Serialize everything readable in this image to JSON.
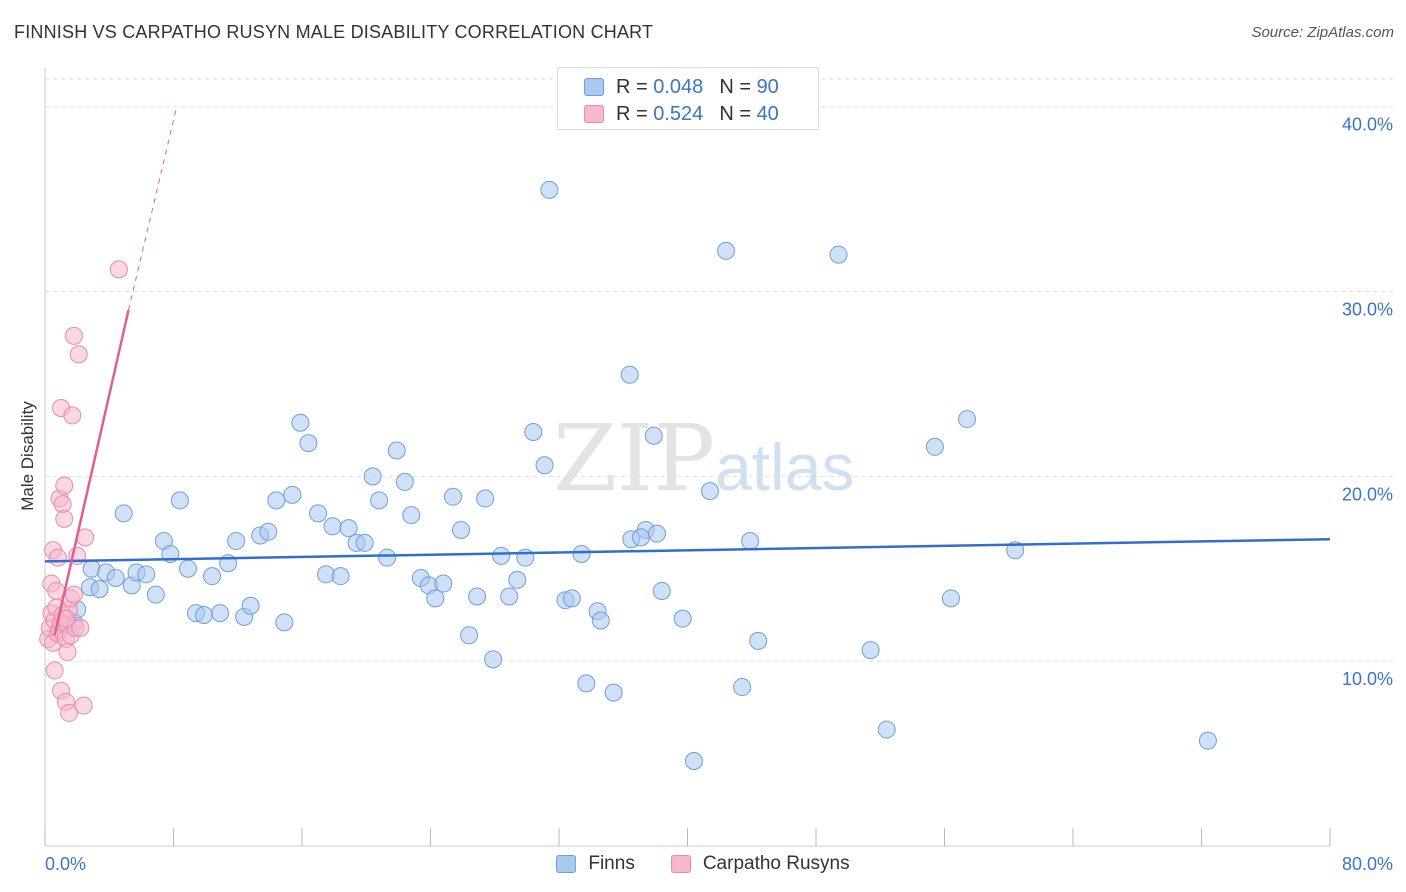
{
  "title": "FINNISH VS CARPATHO RUSYN MALE DISABILITY CORRELATION CHART",
  "source": "Source: ZipAtlas.com",
  "watermark": {
    "part1": "ZIP",
    "part2": "atlas"
  },
  "legend": {
    "rows": [
      {
        "r_label": "R =",
        "r_value": "0.048",
        "n_label": "N =",
        "n_value": "90"
      },
      {
        "r_label": "R =",
        "r_value": "0.524",
        "n_label": "N =",
        "n_value": "40"
      }
    ]
  },
  "colors": {
    "finns_fill": "#aac8f0",
    "finns_stroke": "#6f9fd8",
    "finns_line": "#2f6fce",
    "rusyn_fill": "#f6b8cc",
    "rusyn_stroke": "#e88aaa",
    "rusyn_line": "#e0608e",
    "axis_label": "#3b74c9",
    "grid": "#dddddd"
  },
  "chart_data": {
    "type": "scatter",
    "title": "FINNISH VS CARPATHO RUSYN MALE DISABILITY CORRELATION CHART",
    "xlabel": "",
    "ylabel": "Male Disability",
    "xlim": [
      0,
      80
    ],
    "ylim": [
      0,
      41.5
    ],
    "x_tick_labels": [
      "0.0%",
      "80.0%"
    ],
    "y_ticks": [
      10,
      20,
      30,
      40
    ],
    "y_tick_labels": [
      "10.0%",
      "20.0%",
      "30.0%",
      "40.0%"
    ],
    "grid": true,
    "legend_position": "top-center",
    "series": [
      {
        "name": "Finns",
        "R": 0.048,
        "N": 90,
        "trend": {
          "x0": 0,
          "y0": 15.4,
          "x1": 80,
          "y1": 16.6
        },
        "points": [
          [
            1.8,
            12.1
          ],
          [
            2.0,
            12.8
          ],
          [
            2.8,
            14.0
          ],
          [
            2.9,
            15.0
          ],
          [
            3.4,
            13.9
          ],
          [
            3.8,
            14.8
          ],
          [
            4.4,
            14.5
          ],
          [
            4.9,
            18.0
          ],
          [
            5.4,
            14.1
          ],
          [
            5.7,
            14.8
          ],
          [
            6.3,
            14.7
          ],
          [
            6.9,
            13.6
          ],
          [
            7.4,
            16.5
          ],
          [
            7.8,
            15.8
          ],
          [
            8.4,
            18.7
          ],
          [
            8.9,
            15.0
          ],
          [
            9.4,
            12.6
          ],
          [
            9.9,
            12.5
          ],
          [
            10.4,
            14.6
          ],
          [
            10.9,
            12.6
          ],
          [
            11.4,
            15.3
          ],
          [
            11.9,
            16.5
          ],
          [
            12.4,
            12.4
          ],
          [
            12.8,
            13.0
          ],
          [
            13.4,
            16.8
          ],
          [
            13.9,
            17.0
          ],
          [
            14.4,
            18.7
          ],
          [
            14.9,
            12.1
          ],
          [
            15.4,
            19.0
          ],
          [
            15.9,
            22.9
          ],
          [
            16.4,
            21.8
          ],
          [
            17.0,
            18.0
          ],
          [
            17.5,
            14.7
          ],
          [
            17.9,
            17.3
          ],
          [
            18.4,
            14.6
          ],
          [
            18.9,
            17.2
          ],
          [
            19.4,
            16.4
          ],
          [
            19.9,
            16.4
          ],
          [
            20.4,
            20.0
          ],
          [
            20.8,
            18.7
          ],
          [
            21.3,
            15.6
          ],
          [
            21.9,
            21.4
          ],
          [
            22.4,
            19.7
          ],
          [
            22.8,
            17.9
          ],
          [
            23.4,
            14.5
          ],
          [
            23.9,
            14.1
          ],
          [
            24.3,
            13.4
          ],
          [
            24.8,
            14.2
          ],
          [
            25.4,
            18.9
          ],
          [
            25.9,
            17.1
          ],
          [
            26.4,
            11.4
          ],
          [
            26.9,
            13.5
          ],
          [
            27.4,
            18.8
          ],
          [
            27.9,
            10.1
          ],
          [
            28.4,
            15.7
          ],
          [
            28.9,
            13.5
          ],
          [
            29.4,
            14.4
          ],
          [
            29.9,
            15.6
          ],
          [
            30.4,
            22.4
          ],
          [
            31.1,
            20.6
          ],
          [
            31.4,
            35.5
          ],
          [
            32.4,
            13.3
          ],
          [
            32.8,
            13.4
          ],
          [
            33.4,
            15.8
          ],
          [
            33.7,
            8.8
          ],
          [
            34.4,
            12.7
          ],
          [
            34.6,
            12.2
          ],
          [
            35.4,
            8.3
          ],
          [
            36.4,
            25.5
          ],
          [
            36.5,
            16.6
          ],
          [
            37.4,
            17.1
          ],
          [
            37.1,
            16.7
          ],
          [
            37.9,
            22.2
          ],
          [
            38.4,
            13.8
          ],
          [
            39.7,
            12.3
          ],
          [
            40.4,
            4.6
          ],
          [
            41.4,
            19.2
          ],
          [
            42.4,
            32.2
          ],
          [
            43.4,
            8.6
          ],
          [
            44.4,
            11.1
          ],
          [
            49.4,
            32.0
          ],
          [
            51.4,
            10.6
          ],
          [
            52.4,
            6.3
          ],
          [
            55.4,
            21.6
          ],
          [
            56.4,
            13.4
          ],
          [
            57.4,
            23.1
          ],
          [
            60.4,
            16.0
          ],
          [
            72.4,
            5.7
          ],
          [
            43.9,
            16.5
          ],
          [
            38.1,
            16.9
          ]
        ]
      },
      {
        "name": "Carpatho Rusyns",
        "R": 0.524,
        "N": 40,
        "trend": {
          "x0": 0.6,
          "y0": 11.4,
          "x1": 5.2,
          "y1": 29.0
        },
        "trend_dashed": {
          "x0": 5.2,
          "y0": 29.0,
          "x1": 8.2,
          "y1": 40.0
        },
        "points": [
          [
            0.2,
            11.2
          ],
          [
            0.3,
            11.8
          ],
          [
            0.4,
            12.6
          ],
          [
            0.4,
            14.2
          ],
          [
            0.5,
            16.0
          ],
          [
            0.5,
            11.0
          ],
          [
            0.6,
            9.5
          ],
          [
            0.6,
            12.2
          ],
          [
            0.7,
            13.8
          ],
          [
            0.7,
            12.9
          ],
          [
            0.8,
            11.5
          ],
          [
            0.8,
            15.6
          ],
          [
            0.9,
            18.8
          ],
          [
            0.9,
            11.7
          ],
          [
            1.0,
            8.4
          ],
          [
            1.0,
            12.1
          ],
          [
            1.0,
            23.7
          ],
          [
            1.1,
            18.5
          ],
          [
            1.1,
            12.5
          ],
          [
            1.2,
            19.5
          ],
          [
            1.2,
            17.7
          ],
          [
            1.3,
            7.8
          ],
          [
            1.3,
            11.2
          ],
          [
            1.4,
            10.5
          ],
          [
            1.4,
            12.0
          ],
          [
            1.5,
            7.2
          ],
          [
            1.5,
            12.8
          ],
          [
            1.6,
            13.4
          ],
          [
            1.6,
            11.4
          ],
          [
            1.7,
            23.3
          ],
          [
            1.8,
            27.6
          ],
          [
            1.8,
            13.6
          ],
          [
            1.9,
            11.8
          ],
          [
            2.0,
            15.7
          ],
          [
            2.1,
            26.6
          ],
          [
            2.2,
            11.8
          ],
          [
            2.4,
            7.6
          ],
          [
            2.5,
            16.7
          ],
          [
            4.6,
            31.2
          ],
          [
            1.3,
            12.3
          ]
        ]
      }
    ]
  }
}
